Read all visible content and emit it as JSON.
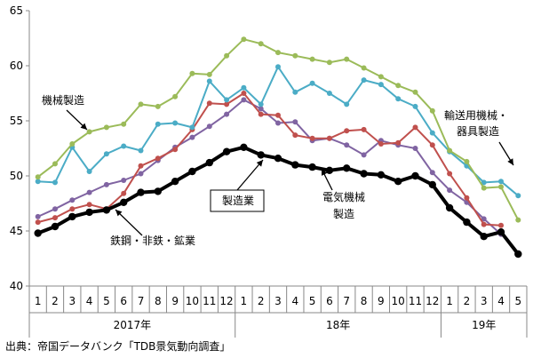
{
  "chart_data": {
    "type": "line",
    "title": "",
    "xlabel": "",
    "ylabel": "",
    "ylim": [
      40,
      65
    ],
    "y_ticks": [
      40,
      45,
      50,
      55,
      60,
      65
    ],
    "grid": false,
    "x_labels": [
      "1",
      "2",
      "3",
      "4",
      "5",
      "6",
      "7",
      "8",
      "9",
      "10",
      "11",
      "12",
      "1",
      "2",
      "3",
      "4",
      "5",
      "6",
      "7",
      "8",
      "9",
      "10",
      "11",
      "12",
      "1",
      "2",
      "3",
      "4",
      "5"
    ],
    "years": [
      {
        "label": "2017年",
        "start": 0,
        "end": 11
      },
      {
        "label": "18年",
        "start": 12,
        "end": 23
      },
      {
        "label": "19年",
        "start": 24,
        "end": 28
      }
    ],
    "series": [
      {
        "name": "製造業",
        "color": "#000000",
        "width": 4,
        "values": [
          44.8,
          45.4,
          46.3,
          46.7,
          46.9,
          47.6,
          48.5,
          48.6,
          49.5,
          50.4,
          51.2,
          52.2,
          52.6,
          51.9,
          51.6,
          51.0,
          50.8,
          50.5,
          50.7,
          50.2,
          50.1,
          49.5,
          50.0,
          49.2,
          47.1,
          45.8,
          44.5,
          44.9,
          42.9
        ]
      },
      {
        "name": "機械製造",
        "color": "#9BBB59",
        "width": 2,
        "values": [
          49.9,
          51.1,
          52.9,
          54.0,
          54.4,
          54.7,
          56.5,
          56.3,
          57.2,
          59.3,
          59.2,
          60.9,
          62.4,
          62.0,
          61.2,
          60.9,
          60.6,
          60.3,
          60.6,
          59.8,
          59.0,
          58.2,
          57.6,
          55.9,
          52.3,
          51.3,
          48.9,
          49.0,
          46.0
        ]
      },
      {
        "name": "輸送用機械・器具製造",
        "color": "#4BACC6",
        "width": 2,
        "values": [
          49.5,
          49.4,
          52.6,
          50.4,
          52.0,
          52.7,
          52.3,
          54.7,
          54.8,
          54.4,
          58.6,
          56.9,
          58.0,
          56.5,
          59.9,
          57.6,
          58.4,
          57.5,
          56.5,
          58.7,
          58.3,
          57.0,
          56.3,
          53.9,
          52.2,
          50.9,
          49.4,
          49.5,
          48.2
        ]
      },
      {
        "name": "電気機械製造",
        "color": "#C0504D",
        "width": 2,
        "values": [
          45.8,
          46.2,
          47.0,
          47.4,
          47.0,
          48.4,
          50.9,
          51.6,
          52.4,
          54.2,
          56.6,
          56.5,
          57.5,
          55.6,
          55.5,
          53.7,
          53.4,
          53.4,
          54.1,
          54.2,
          52.9,
          53.0,
          54.4,
          52.8,
          50.2,
          48.0,
          45.6,
          45.5,
          null
        ]
      },
      {
        "name": "鉄鋼・非鉄・鉱業",
        "color": "#8064A2",
        "width": 2,
        "values": [
          46.3,
          47.0,
          47.8,
          48.5,
          49.2,
          49.6,
          50.2,
          51.4,
          52.6,
          53.5,
          54.5,
          55.6,
          56.9,
          56.1,
          54.8,
          54.9,
          53.2,
          53.4,
          52.8,
          51.9,
          53.2,
          52.8,
          52.5,
          50.3,
          48.7,
          47.6,
          46.1,
          44.7,
          null
        ]
      }
    ],
    "annotations": [
      {
        "text": "機械製造"
      },
      {
        "text": "輸送用機械・"
      },
      {
        "text": "器具製造"
      },
      {
        "text": "製造業"
      },
      {
        "text": "電気機械"
      },
      {
        "text": "製造"
      },
      {
        "text": "鉄鋼・非鉄・鉱業"
      }
    ]
  },
  "source": "出典：帝国データバンク「TDB景気動向調査」"
}
